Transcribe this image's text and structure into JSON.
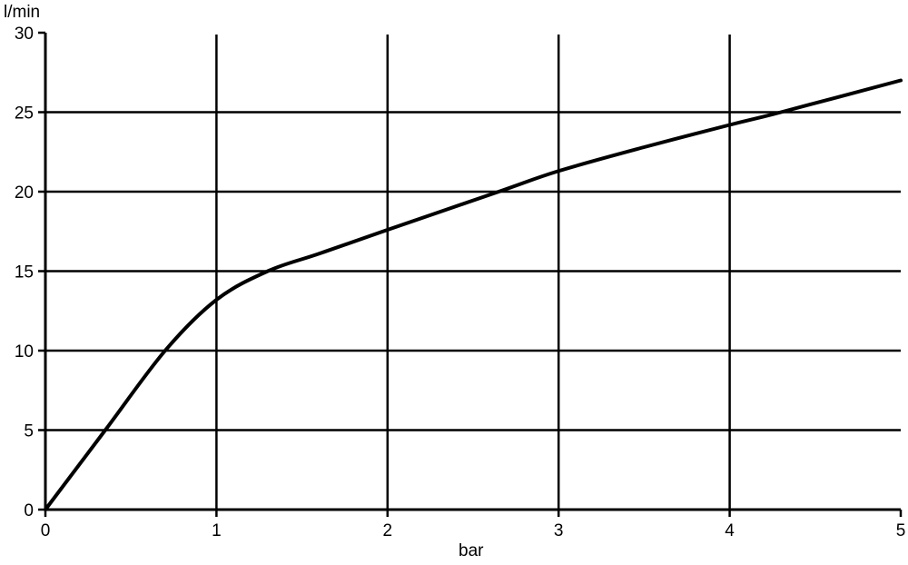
{
  "chart_data": {
    "type": "line",
    "title": "",
    "xlabel": "bar",
    "ylabel": "l/min",
    "xlim": [
      0,
      5
    ],
    "ylim": [
      0,
      30
    ],
    "grid": true,
    "x_ticks": [
      "0",
      "1",
      "2",
      "3",
      "4",
      "5"
    ],
    "y_ticks": [
      "0",
      "5",
      "10",
      "15",
      "20",
      "25",
      "30"
    ],
    "line_color": "#000000",
    "series": [
      {
        "x": [
          0,
          0.35,
          0.7,
          1.0,
          1.3,
          1.6,
          2.0,
          2.65,
          3.0,
          3.5,
          4.0,
          4.3,
          5.0
        ],
        "y": [
          0,
          5,
          10,
          13.2,
          15,
          16.1,
          17.6,
          20,
          21.3,
          22.8,
          24.2,
          25,
          27
        ]
      }
    ]
  }
}
